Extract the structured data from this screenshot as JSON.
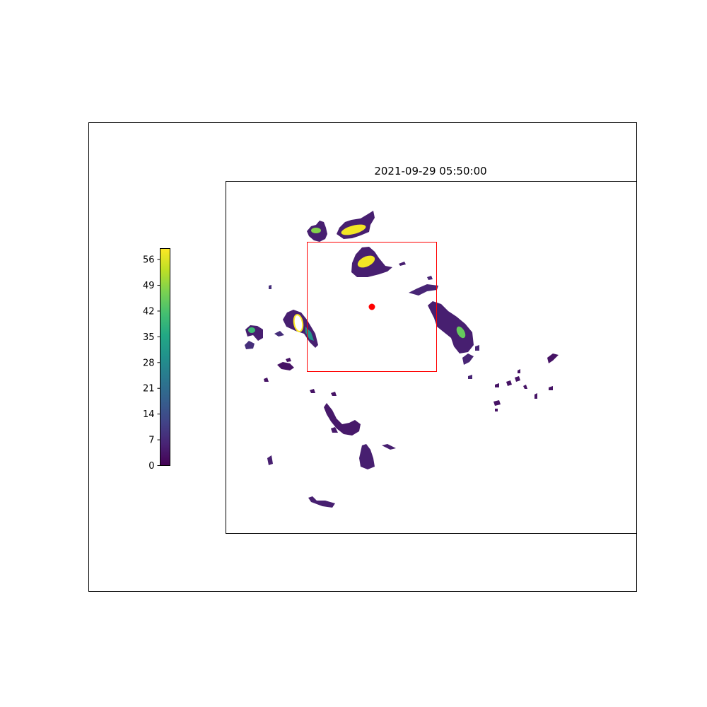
{
  "chart_data": {
    "type": "heatmap",
    "title": "2021-09-29 05:50:00",
    "xlabel": "",
    "ylabel": "",
    "colormap": "viridis",
    "colorbar": {
      "min": 0,
      "max": 59,
      "ticks": [
        0,
        7,
        14,
        21,
        28,
        35,
        42,
        49,
        56
      ],
      "tick_labels": [
        "0",
        "7",
        "14",
        "21",
        "28",
        "35",
        "42",
        "49",
        "56"
      ],
      "placement": "left"
    },
    "grid": false,
    "overlay": {
      "box_color": "#ff0000",
      "marker_color": "#ff0000"
    },
    "cells": [
      {
        "value": 5
      },
      {
        "value": 48
      },
      {
        "value": 58
      },
      {
        "value": 58
      },
      {
        "value": 62
      },
      {
        "value": 30
      },
      {
        "value": 40
      },
      {
        "value": 8
      },
      {
        "value": 45
      },
      {
        "value": 6
      },
      {
        "value": 3
      },
      {
        "value": 4
      },
      {
        "value": 5
      },
      {
        "value": 3
      },
      {
        "value": 4
      },
      {
        "value": 3
      },
      {
        "value": 2
      },
      {
        "value": 3
      },
      {
        "value": 2
      },
      {
        "value": 3
      }
    ]
  }
}
